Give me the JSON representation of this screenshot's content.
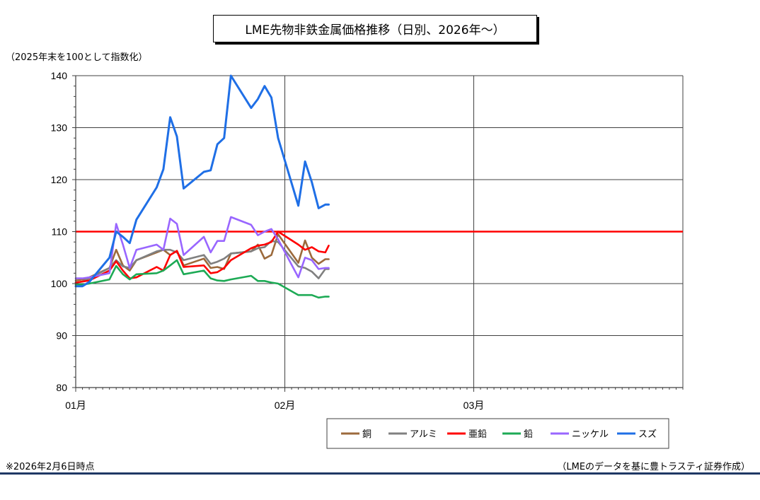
{
  "chart_data": {
    "type": "line",
    "title": "LME先物非鉄金属価格推移（日別、2026年～）",
    "ylabel": "（2025年末を100として指数化）",
    "ylim": [
      80,
      140
    ],
    "yticks": [
      "80",
      "90",
      "100",
      "110",
      "120",
      "130",
      "140"
    ],
    "xticks": [
      {
        "label": "01月",
        "day": 0
      },
      {
        "label": "02月",
        "day": 31
      },
      {
        "label": "03月",
        "day": 59
      }
    ],
    "xlim": [
      0,
      90
    ],
    "grid": true,
    "legend_position": "bottom-right",
    "reference_line": {
      "value": 110,
      "color": "#ff0000"
    },
    "x": [
      0,
      1,
      2,
      5,
      6,
      7,
      8,
      9,
      12,
      13,
      14,
      15,
      16,
      19,
      20,
      21,
      22,
      23,
      26,
      27,
      28,
      29,
      30,
      33,
      34,
      35,
      36,
      37,
      37.5
    ],
    "series": [
      {
        "name": "銅",
        "color": "#9c6a3c",
        "values": [
          100.6,
          100.8,
          101.2,
          103.0,
          106.5,
          103.5,
          102.5,
          104.5,
          106.0,
          106.5,
          105.5,
          106.3,
          103.5,
          104.8,
          103.0,
          103.2,
          102.8,
          105.8,
          106.2,
          107.5,
          104.8,
          105.5,
          109.5,
          104.0,
          108.3,
          105.0,
          103.8,
          104.7,
          104.7
        ]
      },
      {
        "name": "アルミ",
        "color": "#808080",
        "values": [
          100.2,
          100.4,
          101.0,
          103.0,
          104.5,
          103.3,
          103.0,
          104.5,
          106.2,
          106.5,
          106.5,
          106.0,
          104.5,
          105.5,
          103.8,
          104.2,
          104.8,
          105.8,
          106.2,
          106.8,
          107.0,
          108.2,
          108.0,
          103.3,
          103.0,
          102.3,
          101.0,
          102.8,
          102.8
        ]
      },
      {
        "name": "亜鉛",
        "color": "#ff0000",
        "values": [
          100.2,
          100.4,
          100.6,
          102.5,
          104.3,
          102.5,
          101.0,
          101.2,
          103.2,
          102.5,
          105.5,
          106.3,
          103.2,
          103.5,
          102.0,
          102.2,
          103.0,
          104.5,
          106.8,
          107.3,
          107.5,
          108.0,
          110.0,
          107.5,
          106.5,
          107.0,
          106.2,
          106.0,
          107.3
        ]
      },
      {
        "name": "鉛",
        "color": "#1daa55",
        "values": [
          99.8,
          99.8,
          100.0,
          100.8,
          103.4,
          101.8,
          100.8,
          101.8,
          102.0,
          102.5,
          103.5,
          104.5,
          101.8,
          102.5,
          101.0,
          100.6,
          100.5,
          100.8,
          101.5,
          100.5,
          100.5,
          100.2,
          100.0,
          97.8,
          97.8,
          97.8,
          97.3,
          97.5,
          97.5
        ]
      },
      {
        "name": "ニッケル",
        "color": "#9966ff",
        "values": [
          101.0,
          101.0,
          101.2,
          102.0,
          111.5,
          107.5,
          103.0,
          106.5,
          107.5,
          106.5,
          112.5,
          111.5,
          105.5,
          109.0,
          106.0,
          108.2,
          108.2,
          112.8,
          111.3,
          109.3,
          110.0,
          110.5,
          108.5,
          101.2,
          105.0,
          104.5,
          102.8,
          103.0,
          103.0
        ]
      },
      {
        "name": "スズ",
        "color": "#1f6fe6",
        "values": [
          99.5,
          99.5,
          100.3,
          105.0,
          110.0,
          109.0,
          107.8,
          112.3,
          118.5,
          122.0,
          132.0,
          128.3,
          118.3,
          121.5,
          121.8,
          126.8,
          128.0,
          140.0,
          133.8,
          135.5,
          138.0,
          135.8,
          128.0,
          115.0,
          123.5,
          119.5,
          114.5,
          115.2,
          115.2
        ]
      }
    ]
  },
  "notes": {
    "left": "※2026年2月6日時点",
    "right": "（LMEのデータを基に豊トラスティ証券作成）"
  }
}
